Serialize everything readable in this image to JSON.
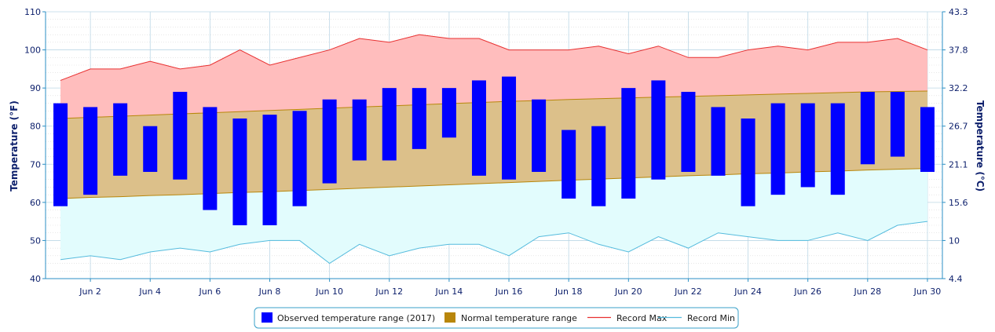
{
  "chart_data": {
    "type": "bar",
    "x": [
      1,
      2,
      3,
      4,
      5,
      6,
      7,
      8,
      9,
      10,
      11,
      12,
      13,
      14,
      15,
      16,
      17,
      18,
      19,
      20,
      21,
      22,
      23,
      24,
      25,
      26,
      27,
      28,
      29,
      30
    ],
    "x_tick_labels": [
      "Jun 2",
      "Jun 4",
      "Jun 6",
      "Jun 8",
      "Jun 10",
      "Jun 12",
      "Jun 14",
      "Jun 16",
      "Jun 18",
      "Jun 20",
      "Jun 22",
      "Jun 24",
      "Jun 26",
      "Jun 28",
      "Jun 30"
    ],
    "x_tick_values": [
      2,
      4,
      6,
      8,
      10,
      12,
      14,
      16,
      18,
      20,
      22,
      24,
      26,
      28,
      30
    ],
    "ylabel": "Temperature (°F)",
    "ylabel_right": "Temperature (°C)",
    "ylim": [
      40,
      110
    ],
    "y_ticks": [
      40,
      50,
      60,
      70,
      80,
      90,
      100,
      110
    ],
    "y_right_ticks": [
      "4.4",
      "10",
      "15.6",
      "21.1",
      "26.7",
      "32.2",
      "37.8",
      "43.3"
    ],
    "series": [
      {
        "name": "Observed temperature range (2017)",
        "kind": "range-bar",
        "color": "#0000ff",
        "low": [
          59,
          62,
          67,
          68,
          66,
          58,
          54,
          54,
          59,
          65,
          71,
          71,
          74,
          77,
          67,
          66,
          68,
          61,
          59,
          61,
          66,
          68,
          67,
          59,
          62,
          64,
          62,
          70,
          72,
          68
        ],
        "high": [
          86,
          85,
          86,
          80,
          89,
          85,
          82,
          83,
          84,
          87,
          87,
          90,
          90,
          90,
          92,
          93,
          87,
          79,
          80,
          90,
          92,
          89,
          85,
          82,
          86,
          86,
          86,
          89,
          89,
          85
        ]
      },
      {
        "name": "Normal temperature range",
        "kind": "range-area",
        "color": "#b8860b",
        "low": [
          61,
          61.3,
          61.5,
          61.8,
          62,
          62.3,
          62.6,
          62.8,
          63.1,
          63.4,
          63.7,
          64,
          64.3,
          64.6,
          64.9,
          65.2,
          65.5,
          65.8,
          66.1,
          66.4,
          66.7,
          67,
          67.2,
          67.5,
          67.7,
          68,
          68.2,
          68.5,
          68.7,
          68.9
        ],
        "high": [
          82,
          82.3,
          82.6,
          82.9,
          83.2,
          83.5,
          83.8,
          84.1,
          84.4,
          84.7,
          85,
          85.3,
          85.6,
          85.9,
          86.2,
          86.5,
          86.7,
          87,
          87.2,
          87.4,
          87.6,
          87.8,
          88,
          88.2,
          88.4,
          88.6,
          88.8,
          89,
          89.1,
          89.2
        ]
      },
      {
        "name": "Record Max",
        "kind": "line",
        "color": "#e83030",
        "fill": "#ffbdbd",
        "values": [
          92,
          95,
          95,
          97,
          95,
          96,
          100,
          96,
          98,
          100,
          103,
          102,
          104,
          103,
          103,
          100,
          100,
          100,
          101,
          99,
          101,
          98,
          98,
          100,
          101,
          100,
          102,
          102,
          103,
          100
        ]
      },
      {
        "name": "Record Min",
        "kind": "line",
        "color": "#55bbdd",
        "fill": "#e2fcfd",
        "values": [
          45,
          46,
          45,
          47,
          48,
          47,
          49,
          50,
          50,
          44,
          49,
          46,
          48,
          49,
          49,
          46,
          51,
          52,
          49,
          47,
          51,
          48,
          52,
          51,
          50,
          50,
          52,
          50,
          54,
          55
        ]
      }
    ],
    "grid": true,
    "legend_position": "bottom-center"
  }
}
